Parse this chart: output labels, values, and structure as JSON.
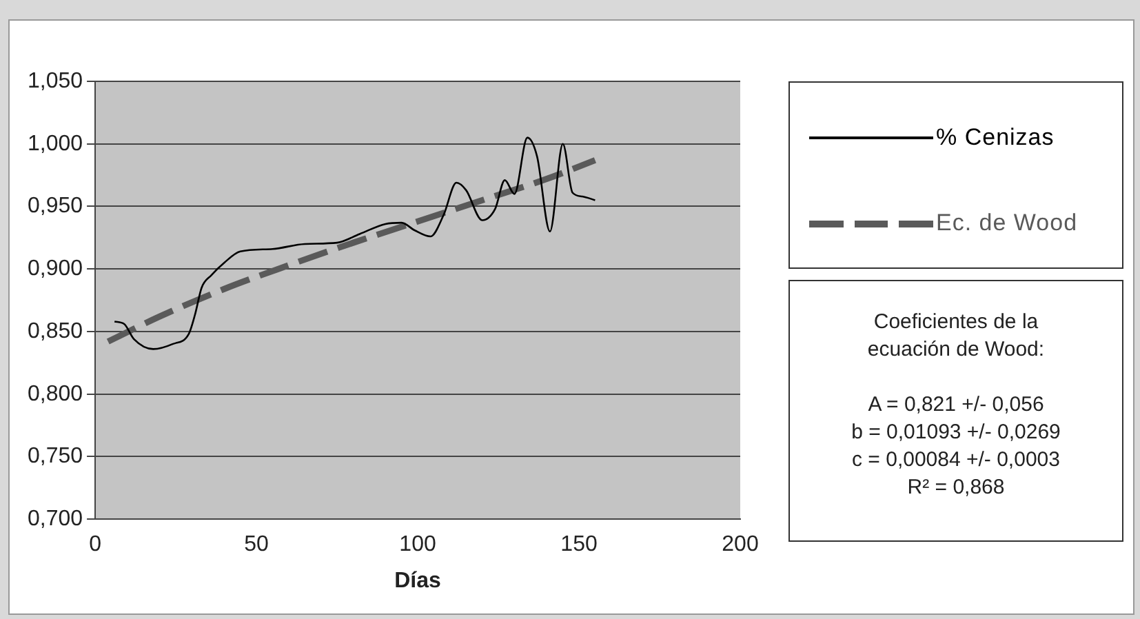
{
  "chart_data": {
    "type": "line",
    "xlabel": "Días",
    "xlim": [
      0,
      200
    ],
    "xticks": [
      0,
      50,
      100,
      150,
      200
    ],
    "ylim": [
      0.7,
      1.05
    ],
    "yticks": [
      {
        "value": 0.7,
        "label": "0,700"
      },
      {
        "value": 0.75,
        "label": "0,750"
      },
      {
        "value": 0.8,
        "label": "0,800"
      },
      {
        "value": 0.85,
        "label": "0,850"
      },
      {
        "value": 0.9,
        "label": "0,900"
      },
      {
        "value": 0.95,
        "label": "0,950"
      },
      {
        "value": 1.0,
        "label": "1,000"
      },
      {
        "value": 1.05,
        "label": "1,050"
      }
    ],
    "grid": "y",
    "legend": "right",
    "marker": "none",
    "series": [
      {
        "name": "% Cenizas",
        "color": "#000000",
        "line_style": "solid",
        "x": [
          6,
          9,
          12,
          18,
          24,
          29,
          31,
          33,
          36,
          40,
          45,
          55,
          65,
          75,
          82,
          90,
          95,
          99,
          104,
          108,
          112,
          115,
          120,
          124,
          127,
          130,
          134,
          137,
          141,
          145,
          148,
          151,
          155
        ],
        "values": [
          0.858,
          0.856,
          0.844,
          0.836,
          0.84,
          0.848,
          0.864,
          0.885,
          0.895,
          0.905,
          0.914,
          0.916,
          0.92,
          0.921,
          0.928,
          0.936,
          0.937,
          0.931,
          0.926,
          0.943,
          0.969,
          0.963,
          0.939,
          0.948,
          0.971,
          0.96,
          1.005,
          0.99,
          0.93,
          1.0,
          0.961,
          0.958,
          0.955
        ]
      },
      {
        "name": "Ec. de Wood",
        "color": "#5a5a5a",
        "line_style": "dashed",
        "x": [
          4,
          20,
          40,
          60,
          80,
          100,
          120,
          140,
          155
        ],
        "values": [
          0.842,
          0.862,
          0.884,
          0.903,
          0.921,
          0.938,
          0.955,
          0.972,
          0.987
        ]
      }
    ],
    "annotations": [
      "Coeficientes de la ecuación de Wood:",
      "A = 0,821 +/- 0,056",
      "b = 0,01093 +/- 0,0269",
      "c = 0,00084 +/- 0,0003",
      "R² = 0,868"
    ]
  }
}
